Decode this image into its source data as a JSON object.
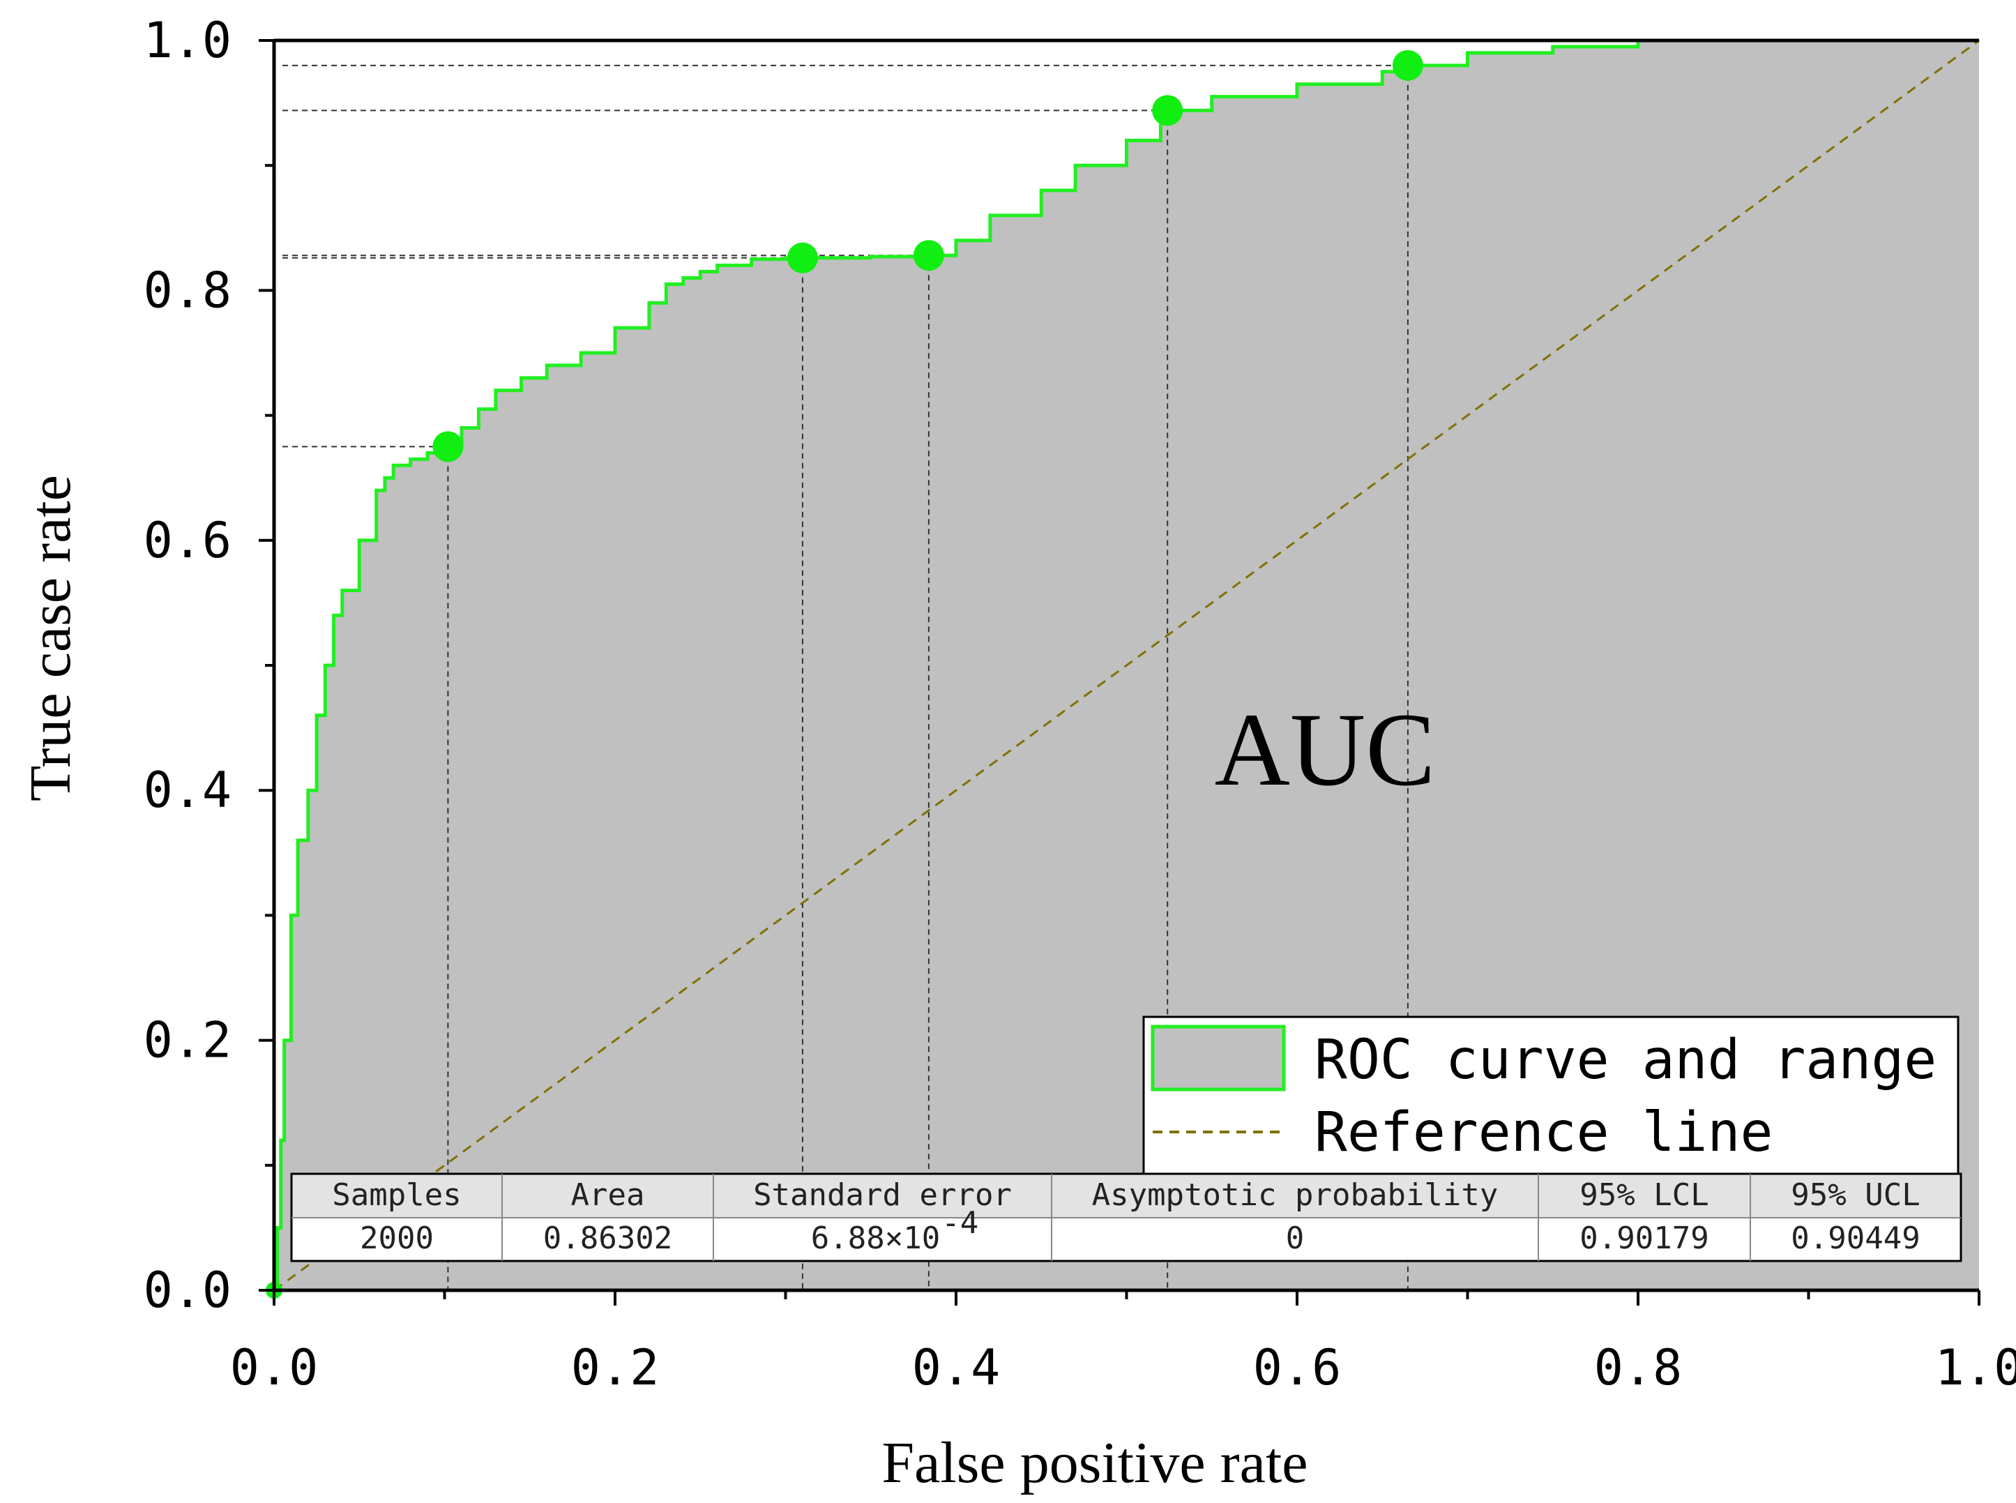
{
  "chart_data": {
    "type": "area",
    "title": "",
    "xlabel": "False positive rate",
    "ylabel": "True case rate",
    "xlim": [
      0,
      1
    ],
    "ylim": [
      0,
      1
    ],
    "x_ticks": [
      "0.0",
      "0.2",
      "0.4",
      "0.6",
      "0.8",
      "1.0"
    ],
    "y_ticks": [
      "0.0",
      "0.2",
      "0.4",
      "0.6",
      "0.8",
      "1.0"
    ],
    "annotation": "AUC",
    "colors": {
      "curve": "#22ee22",
      "fill": "#c0c0c0",
      "reference": "#807000",
      "marker": "#11ee11"
    },
    "series": [
      {
        "name": "ROC curve and range",
        "x": [
          0.0,
          0.002,
          0.004,
          0.006,
          0.01,
          0.014,
          0.02,
          0.025,
          0.03,
          0.035,
          0.04,
          0.05,
          0.06,
          0.065,
          0.07,
          0.08,
          0.09,
          0.1,
          0.11,
          0.12,
          0.13,
          0.145,
          0.16,
          0.18,
          0.2,
          0.22,
          0.23,
          0.24,
          0.25,
          0.26,
          0.28,
          0.3,
          0.31,
          0.35,
          0.385,
          0.4,
          0.42,
          0.45,
          0.47,
          0.5,
          0.52,
          0.525,
          0.55,
          0.6,
          0.65,
          0.665,
          0.7,
          0.75,
          0.8,
          0.85,
          0.9,
          0.95,
          1.0
        ],
        "y": [
          0.0,
          0.05,
          0.12,
          0.2,
          0.3,
          0.36,
          0.4,
          0.46,
          0.5,
          0.54,
          0.56,
          0.6,
          0.64,
          0.65,
          0.66,
          0.665,
          0.67,
          0.675,
          0.69,
          0.705,
          0.72,
          0.73,
          0.74,
          0.75,
          0.77,
          0.79,
          0.805,
          0.81,
          0.815,
          0.82,
          0.825,
          0.826,
          0.826,
          0.827,
          0.828,
          0.84,
          0.86,
          0.88,
          0.9,
          0.92,
          0.935,
          0.944,
          0.955,
          0.965,
          0.975,
          0.98,
          0.99,
          0.995,
          1.0,
          1.0,
          1.0,
          1.0,
          1.0
        ]
      },
      {
        "name": "Reference line",
        "x": [
          0,
          1
        ],
        "y": [
          0,
          1
        ]
      }
    ],
    "highlight_points": [
      {
        "x": 0.102,
        "y": 0.675
      },
      {
        "x": 0.31,
        "y": 0.826
      },
      {
        "x": 0.384,
        "y": 0.828
      },
      {
        "x": 0.524,
        "y": 0.944
      },
      {
        "x": 0.665,
        "y": 0.98
      }
    ],
    "legend": {
      "position": "bottom-right",
      "entries": [
        "ROC curve and range",
        "Reference line"
      ]
    },
    "table": {
      "headers": [
        "Samples",
        "Area",
        "Standard error",
        "Asymptotic probability",
        "95% LCL",
        "95% UCL"
      ],
      "values": [
        "2000",
        "0.86302",
        "6.88×10",
        "0",
        "0.90179",
        "0.90449"
      ],
      "std_error_exponent": "-4"
    }
  }
}
